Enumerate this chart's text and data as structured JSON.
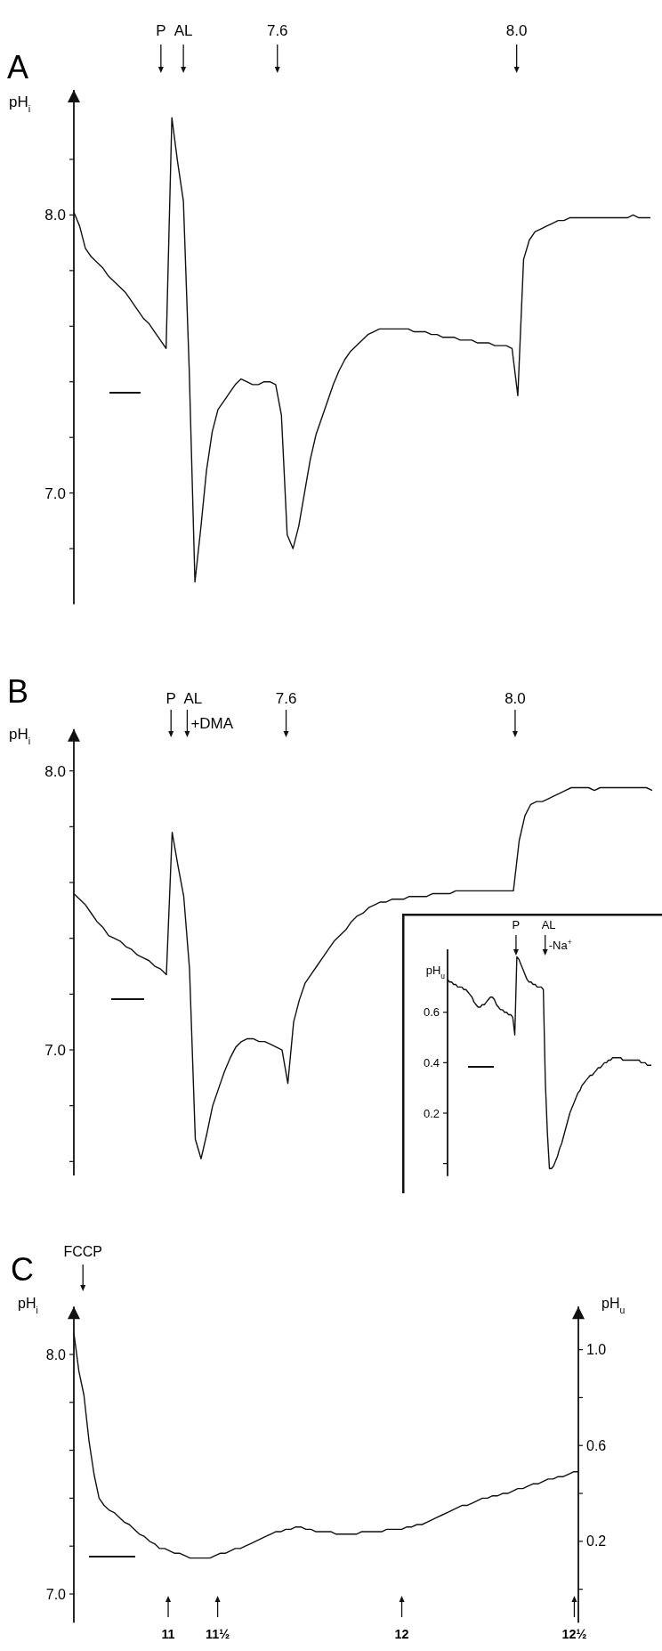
{
  "chart_data": [
    {
      "type": "line",
      "title": "A",
      "ylabel": "pH$_{i}$",
      "ylim": [
        6.6,
        8.45
      ],
      "tick_labels": "y",
      "grid": false,
      "marker": "none",
      "line_style": "solid",
      "categories": [
        null,
        null,
        null,
        null,
        null,
        null,
        null,
        null,
        null,
        null,
        null,
        null,
        null,
        null,
        null,
        null,
        null,
        null,
        null,
        null,
        null,
        null,
        null,
        null,
        null,
        null,
        null,
        null,
        null,
        null,
        null,
        null,
        null,
        null,
        null,
        null,
        null,
        null,
        null,
        null,
        null,
        null,
        null,
        null,
        null,
        null,
        null,
        null,
        null,
        null,
        null,
        null,
        null,
        null,
        null,
        null,
        null,
        null,
        null,
        null,
        null,
        null,
        null,
        null,
        null,
        null,
        null,
        null,
        null,
        null,
        null,
        null,
        null,
        null,
        null,
        null,
        null,
        null,
        null,
        null,
        null,
        null,
        null,
        null,
        null,
        null,
        null,
        null,
        null,
        null,
        null,
        null,
        null,
        null,
        null,
        null,
        null,
        null,
        null,
        null,
        null
      ],
      "yticks": [
        {
          "value": 6.8,
          "label": null
        },
        {
          "value": 7,
          "label": "7.0"
        },
        {
          "value": 7.2,
          "label": null
        },
        {
          "value": 7.4,
          "label": null
        },
        {
          "value": 7.6,
          "label": null
        },
        {
          "value": 7.8,
          "label": null
        },
        {
          "value": 8,
          "label": "8.0"
        },
        {
          "value": 8.2,
          "label": null
        }
      ],
      "annotations": [
        "P",
        "AL",
        "7.6",
        "8.0"
      ],
      "series": [
        {
          "color": "#111111",
          "values": [
            8.01,
            7.96,
            7.88,
            7.85,
            7.83,
            7.81,
            7.78,
            7.76,
            7.74,
            7.72,
            7.69,
            7.66,
            7.63,
            7.61,
            7.58,
            7.55,
            7.52,
            8.35,
            8.19,
            8.05,
            7.45,
            6.68,
            6.87,
            7.08,
            7.22,
            7.3,
            7.33,
            7.36,
            7.39,
            7.41,
            7.4,
            7.39,
            7.39,
            7.4,
            7.4,
            7.39,
            7.28,
            6.85,
            6.8,
            6.88,
            7.0,
            7.12,
            7.21,
            7.27,
            7.33,
            7.39,
            7.44,
            7.48,
            7.51,
            7.53,
            7.55,
            7.57,
            7.58,
            7.59,
            7.59,
            7.59,
            7.59,
            7.59,
            7.59,
            7.58,
            7.58,
            7.58,
            7.57,
            7.57,
            7.56,
            7.56,
            7.56,
            7.55,
            7.55,
            7.55,
            7.54,
            7.54,
            7.54,
            7.53,
            7.53,
            7.53,
            7.52,
            7.35,
            7.84,
            7.91,
            7.94,
            7.95,
            7.96,
            7.97,
            7.98,
            7.98,
            7.99,
            7.99,
            7.99,
            7.99,
            7.99,
            7.99,
            7.99,
            7.99,
            7.99,
            7.99,
            7.99,
            8.0,
            7.99,
            7.99,
            7.99
          ]
        }
      ]
    },
    {
      "type": "line",
      "title": "B",
      "ylabel": "pH$_{i}$",
      "ylim": [
        6.55,
        8.15
      ],
      "tick_labels": "y",
      "grid": false,
      "marker": "none",
      "line_style": "solid",
      "categories": [
        null,
        null,
        null,
        null,
        null,
        null,
        null,
        null,
        null,
        null,
        null,
        null,
        null,
        null,
        null,
        null,
        null,
        null,
        null,
        null,
        null,
        null,
        null,
        null,
        null,
        null,
        null,
        null,
        null,
        null,
        null,
        null,
        null,
        null,
        null,
        null,
        null,
        null,
        null,
        null,
        null,
        null,
        null,
        null,
        null,
        null,
        null,
        null,
        null,
        null,
        null,
        null,
        null,
        null,
        null,
        null,
        null,
        null,
        null,
        null,
        null,
        null,
        null,
        null,
        null,
        null,
        null,
        null,
        null,
        null,
        null,
        null,
        null,
        null,
        null,
        null,
        null,
        null,
        null,
        null,
        null,
        null,
        null,
        null,
        null,
        null,
        null,
        null,
        null,
        null,
        null,
        null,
        null,
        null,
        null,
        null,
        null,
        null,
        null,
        null,
        null
      ],
      "yticks": [
        {
          "value": 6.6,
          "label": null
        },
        {
          "value": 6.8,
          "label": null
        },
        {
          "value": 7,
          "label": "7.0"
        },
        {
          "value": 7.2,
          "label": null
        },
        {
          "value": 7.4,
          "label": null
        },
        {
          "value": 7.6,
          "label": null
        },
        {
          "value": 7.8,
          "label": null
        },
        {
          "value": 8,
          "label": "8.0"
        }
      ],
      "annotations": [
        "P",
        "AL +DMA",
        "7.6",
        "8.0"
      ],
      "series": [
        {
          "color": "#111111",
          "values": [
            7.56,
            7.54,
            7.52,
            7.49,
            7.46,
            7.44,
            7.41,
            7.4,
            7.39,
            7.37,
            7.36,
            7.34,
            7.33,
            7.32,
            7.3,
            7.29,
            7.27,
            7.78,
            7.66,
            7.55,
            7.29,
            6.68,
            6.61,
            6.7,
            6.8,
            6.86,
            6.92,
            6.97,
            7.01,
            7.03,
            7.04,
            7.04,
            7.03,
            7.03,
            7.02,
            7.01,
            7.0,
            6.88,
            7.1,
            7.18,
            7.24,
            7.27,
            7.3,
            7.33,
            7.36,
            7.39,
            7.41,
            7.43,
            7.46,
            7.48,
            7.49,
            7.51,
            7.52,
            7.53,
            7.53,
            7.54,
            7.54,
            7.54,
            7.55,
            7.55,
            7.55,
            7.55,
            7.56,
            7.56,
            7.56,
            7.56,
            7.57,
            7.57,
            7.57,
            7.57,
            7.57,
            7.57,
            7.57,
            7.57,
            7.57,
            7.57,
            7.57,
            7.75,
            7.84,
            7.88,
            7.89,
            7.89,
            7.9,
            7.91,
            7.92,
            7.93,
            7.94,
            7.94,
            7.94,
            7.94,
            7.93,
            7.94,
            7.94,
            7.94,
            7.94,
            7.94,
            7.94,
            7.94,
            7.94,
            7.94,
            7.93
          ]
        }
      ]
    },
    {
      "type": "line",
      "ylabel": "pH$_{u}$",
      "ylim": [
        -0.05,
        0.85
      ],
      "tick_labels": "y",
      "grid": false,
      "marker": "none",
      "line_style": "solid",
      "categories": [
        null,
        null,
        null,
        null,
        null,
        null,
        null,
        null,
        null,
        null,
        null,
        null,
        null,
        null,
        null,
        null,
        null,
        null,
        null,
        null,
        null,
        null,
        null,
        null,
        null,
        null,
        null,
        null,
        null,
        null,
        null,
        null,
        null,
        null,
        null,
        null,
        null,
        null,
        null,
        null,
        null,
        null,
        null,
        null,
        null,
        null,
        null,
        null,
        null,
        null,
        null,
        null,
        null,
        null,
        null,
        null,
        null,
        null,
        null,
        null,
        null,
        null,
        null,
        null,
        null,
        null,
        null,
        null,
        null,
        null,
        null,
        null,
        null,
        null,
        null,
        null,
        null,
        null,
        null,
        null,
        null,
        null,
        null,
        null,
        null,
        null,
        null,
        null,
        null,
        null,
        null,
        null,
        null,
        null,
        null,
        null,
        null,
        null,
        null,
        null,
        null
      ],
      "yticks": [
        {
          "value": 0,
          "label": null
        },
        {
          "value": 0.2,
          "label": "0.2"
        },
        {
          "value": 0.4,
          "label": "0.4"
        },
        {
          "value": 0.6,
          "label": "0.6"
        }
      ],
      "annotations": [
        "P",
        "AL -Na$^{+}$"
      ],
      "series": [
        {
          "color": "#111111",
          "values": [
            0.73,
            0.72,
            0.72,
            0.71,
            0.71,
            0.7,
            0.7,
            0.7,
            0.69,
            0.69,
            0.68,
            0.67,
            0.66,
            0.64,
            0.63,
            0.62,
            0.62,
            0.63,
            0.63,
            0.64,
            0.65,
            0.66,
            0.66,
            0.65,
            0.63,
            0.62,
            0.61,
            0.61,
            0.6,
            0.6,
            0.59,
            0.59,
            0.58,
            0.51,
            0.82,
            0.81,
            0.79,
            0.77,
            0.75,
            0.73,
            0.72,
            0.72,
            0.71,
            0.71,
            0.7,
            0.7,
            0.7,
            0.69,
            0.32,
            0.12,
            -0.02,
            -0.02,
            -0.01,
            0.01,
            0.03,
            0.06,
            0.08,
            0.11,
            0.14,
            0.17,
            0.2,
            0.22,
            0.24,
            0.26,
            0.28,
            0.29,
            0.31,
            0.32,
            0.33,
            0.34,
            0.35,
            0.35,
            0.36,
            0.37,
            0.38,
            0.38,
            0.39,
            0.4,
            0.4,
            0.41,
            0.41,
            0.42,
            0.42,
            0.42,
            0.42,
            0.42,
            0.41,
            0.41,
            0.41,
            0.41,
            0.41,
            0.41,
            0.41,
            0.41,
            0.41,
            0.4,
            0.4,
            0.4,
            0.39,
            0.39,
            0.39
          ]
        }
      ]
    },
    {
      "type": "line",
      "title": "C",
      "ylabel": "pH$_{i}$",
      "y2label": "pH$_{u}$",
      "ylim": [
        6.88,
        8.2
      ],
      "y2lim": [
        -0.14,
        1.18
      ],
      "tick_labels": "y",
      "grid": false,
      "marker": "none",
      "line_style": "solid",
      "categories": [
        null,
        null,
        null,
        null,
        null,
        null,
        null,
        null,
        null,
        null,
        null,
        null,
        null,
        null,
        null,
        null,
        null,
        null,
        null,
        null,
        null,
        null,
        null,
        null,
        null,
        null,
        null,
        null,
        null,
        null,
        null,
        null,
        null,
        null,
        null,
        null,
        null,
        null,
        null,
        null,
        null,
        null,
        null,
        null,
        null,
        null,
        null,
        null,
        null,
        null,
        null,
        null,
        null,
        null,
        null,
        null,
        null,
        null,
        null,
        null,
        null,
        null,
        null,
        null,
        null,
        null,
        null,
        null,
        null,
        null,
        null,
        null,
        null,
        null,
        null,
        null,
        null,
        null,
        null,
        null,
        null,
        null,
        null,
        null,
        null,
        null,
        null,
        null,
        null,
        null,
        null,
        null,
        null,
        null,
        null,
        null,
        null,
        null,
        null,
        null,
        null
      ],
      "yticks": [
        {
          "value": 7,
          "label": "7.0"
        },
        {
          "value": 7.2,
          "label": null
        },
        {
          "value": 7.4,
          "label": null
        },
        {
          "value": 7.6,
          "label": null
        },
        {
          "value": 7.8,
          "label": null
        },
        {
          "value": 8,
          "label": "8.0"
        }
      ],
      "y2ticks": [
        {
          "value": 0,
          "label": null
        },
        {
          "value": 0.2,
          "label": "0.2"
        },
        {
          "value": 0.4,
          "label": null
        },
        {
          "value": 0.6,
          "label": "0.6"
        },
        {
          "value": 0.8,
          "label": null
        },
        {
          "value": 1,
          "label": "1.0"
        }
      ],
      "annotations": [
        "FCCP",
        "11",
        "11½",
        "12",
        "12½"
      ],
      "series": [
        {
          "color": "#111111",
          "values": [
            8.09,
            7.93,
            7.83,
            7.64,
            7.5,
            7.4,
            7.37,
            7.35,
            7.34,
            7.32,
            7.3,
            7.29,
            7.27,
            7.25,
            7.24,
            7.22,
            7.21,
            7.19,
            7.19,
            7.18,
            7.17,
            7.17,
            7.16,
            7.15,
            7.15,
            7.15,
            7.15,
            7.15,
            7.16,
            7.17,
            7.17,
            7.18,
            7.19,
            7.19,
            7.2,
            7.21,
            7.22,
            7.23,
            7.24,
            7.25,
            7.26,
            7.26,
            7.27,
            7.27,
            7.28,
            7.28,
            7.27,
            7.27,
            7.26,
            7.26,
            7.26,
            7.26,
            7.25,
            7.25,
            7.25,
            7.25,
            7.25,
            7.26,
            7.26,
            7.26,
            7.26,
            7.26,
            7.27,
            7.27,
            7.27,
            7.27,
            7.28,
            7.28,
            7.29,
            7.29,
            7.3,
            7.31,
            7.32,
            7.33,
            7.34,
            7.35,
            7.36,
            7.37,
            7.37,
            7.38,
            7.39,
            7.4,
            7.4,
            7.41,
            7.41,
            7.42,
            7.42,
            7.43,
            7.44,
            7.44,
            7.45,
            7.46,
            7.46,
            7.47,
            7.48,
            7.48,
            7.49,
            7.49,
            7.5,
            7.51,
            7.51
          ]
        }
      ]
    }
  ]
}
